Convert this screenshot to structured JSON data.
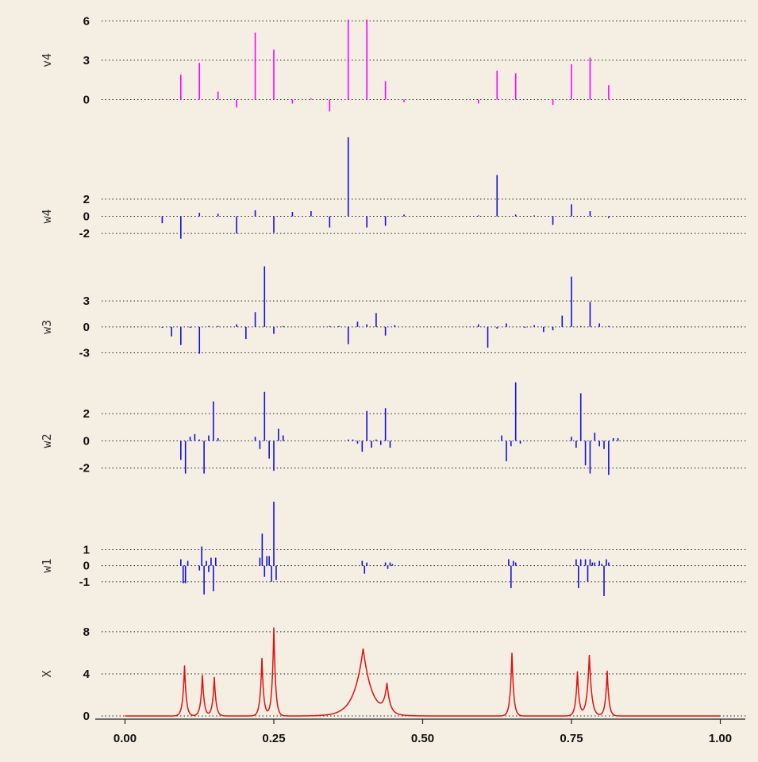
{
  "colors": {
    "background": "#f5efe3",
    "coef_pink": "#ff00ff",
    "coef_blue": "#1010e0",
    "signal_red": "#e01010"
  },
  "chart_data": {
    "type": "line",
    "panels": [
      {
        "label": "v4",
        "color": "#ff00ff",
        "kind": "stem",
        "ylim": [
          -1,
          6.5
        ],
        "yticks": [
          0,
          3,
          6
        ],
        "ytick_labels": [
          "0",
          "3",
          "6"
        ],
        "x": [
          0.0625,
          0.09375,
          0.125,
          0.15625,
          0.1875,
          0.21875,
          0.25,
          0.28125,
          0.3125,
          0.34375,
          0.375,
          0.40625,
          0.4375,
          0.46875,
          0.59375,
          0.625,
          0.65625,
          0.71875,
          0.75,
          0.78125,
          0.8125
        ],
        "y": [
          0.05,
          1.9,
          2.8,
          0.6,
          -0.6,
          5.1,
          3.8,
          -0.3,
          0.1,
          -0.9,
          6.1,
          6.1,
          1.4,
          -0.2,
          -0.3,
          2.2,
          2.0,
          -0.4,
          2.7,
          3.2,
          1.1
        ]
      },
      {
        "label": "w4",
        "color": "#1010e0",
        "kind": "stem",
        "ylim": [
          -3,
          9
        ],
        "yticks": [
          -2,
          0,
          2
        ],
        "ytick_labels": [
          "-2",
          "0",
          "2"
        ],
        "x": [
          0.0625,
          0.09375,
          0.125,
          0.15625,
          0.1875,
          0.21875,
          0.25,
          0.28125,
          0.3125,
          0.34375,
          0.375,
          0.40625,
          0.4375,
          0.46875,
          0.59375,
          0.625,
          0.65625,
          0.6875,
          0.71875,
          0.75,
          0.78125,
          0.8125
        ],
        "y": [
          -0.8,
          -2.6,
          0.4,
          0.3,
          -2.0,
          0.7,
          -1.9,
          0.5,
          0.6,
          -1.3,
          9.2,
          -1.3,
          -1.1,
          0.2,
          0.1,
          4.8,
          0.2,
          0.1,
          -1.0,
          1.4,
          0.6,
          -0.2
        ]
      },
      {
        "label": "w3",
        "color": "#1010e0",
        "kind": "stem",
        "ylim": [
          -3.5,
          7.5
        ],
        "yticks": [
          -3,
          0,
          3
        ],
        "ytick_labels": [
          "-3",
          "0",
          "3"
        ],
        "x": [
          0.0625,
          0.078125,
          0.09375,
          0.109375,
          0.125,
          0.140625,
          0.15625,
          0.171875,
          0.1875,
          0.203125,
          0.21875,
          0.234375,
          0.25,
          0.265625,
          0.34375,
          0.359375,
          0.375,
          0.390625,
          0.40625,
          0.421875,
          0.4375,
          0.453125,
          0.59375,
          0.609375,
          0.625,
          0.640625,
          0.65625,
          0.671875,
          0.6875,
          0.703125,
          0.71875,
          0.734375,
          0.75,
          0.765625,
          0.78125,
          0.796875,
          0.8125
        ],
        "y": [
          -0.1,
          -1.1,
          -2.1,
          -0.1,
          -3.1,
          0.1,
          0.1,
          0,
          0.3,
          -1.4,
          1.7,
          7.0,
          -0.8,
          0.1,
          0.1,
          0.1,
          -2.0,
          0.6,
          0.3,
          1.6,
          -1.0,
          0.2,
          0.3,
          -2.4,
          -0.2,
          0.4,
          0,
          -0.1,
          0.2,
          -0.6,
          -0.4,
          1.3,
          5.8,
          0.1,
          2.9,
          0.4,
          0.1
        ]
      },
      {
        "label": "w2",
        "color": "#1010e0",
        "kind": "stem",
        "ylim": [
          -2.6,
          4.4
        ],
        "yticks": [
          -2,
          0,
          2
        ],
        "ytick_labels": [
          "-2",
          "0",
          "2"
        ],
        "x": [
          0.09375,
          0.1015625,
          0.109375,
          0.1171875,
          0.125,
          0.1328125,
          0.140625,
          0.1484375,
          0.15625,
          0.21875,
          0.2265625,
          0.234375,
          0.2421875,
          0.25,
          0.2578125,
          0.265625,
          0.375,
          0.3828125,
          0.390625,
          0.3984375,
          0.40625,
          0.4140625,
          0.421875,
          0.4296875,
          0.4375,
          0.4453125,
          0.6328125,
          0.640625,
          0.6484375,
          0.65625,
          0.6640625,
          0.75,
          0.7578125,
          0.765625,
          0.7734375,
          0.78125,
          0.7890625,
          0.796875,
          0.8046875,
          0.8125,
          0.8203125,
          0.828125
        ],
        "y": [
          -1.4,
          -2.4,
          0.3,
          0.5,
          0.1,
          -2.4,
          0.4,
          2.9,
          0.2,
          0.3,
          -0.6,
          3.6,
          -1.3,
          -2.2,
          0.9,
          0.4,
          0.1,
          0.1,
          -0.2,
          -0.8,
          2.2,
          -0.5,
          0.1,
          -0.3,
          2.4,
          -0.5,
          0.4,
          -1.5,
          -0.4,
          4.3,
          -0.2,
          0.3,
          -0.5,
          3.5,
          -1.8,
          -2.4,
          0.6,
          -0.4,
          -0.6,
          -2.5,
          0.2,
          0.2
        ]
      },
      {
        "label": "w1",
        "color": "#1010e0",
        "kind": "stem",
        "ylim": [
          -2.1,
          4.1
        ],
        "yticks": [
          -1,
          0,
          1
        ],
        "ytick_labels": [
          "-1",
          "0",
          "1"
        ],
        "x": [
          0.09375,
          0.0976563,
          0.1015625,
          0.1054688,
          0.125,
          0.1289063,
          0.1328125,
          0.1367188,
          0.140625,
          0.1445313,
          0.1484375,
          0.1523438,
          0.2265625,
          0.2304688,
          0.234375,
          0.2382813,
          0.2421875,
          0.2460938,
          0.25,
          0.2539063,
          0.3984375,
          0.4023438,
          0.40625,
          0.4375,
          0.4414063,
          0.4453125,
          0.4492188,
          0.6445313,
          0.6484375,
          0.6523438,
          0.65625,
          0.7578125,
          0.7617188,
          0.765625,
          0.7734375,
          0.7773438,
          0.78125,
          0.7851563,
          0.7890625,
          0.796875,
          0.8007813,
          0.8046875,
          0.8085938,
          0.8125
        ],
        "y": [
          0.4,
          -1.1,
          -1.1,
          0.3,
          -0.3,
          1.2,
          -1.8,
          0.3,
          -0.4,
          0.5,
          -1.6,
          0.5,
          0.5,
          2.0,
          -0.7,
          0.6,
          0.6,
          -1.0,
          4.0,
          -0.9,
          0.3,
          -0.5,
          0.2,
          0.2,
          -0.2,
          0.2,
          0.1,
          0.4,
          -1.4,
          0.3,
          0.2,
          0.4,
          -1.4,
          0.4,
          0.4,
          -1.0,
          0.4,
          0.2,
          0.2,
          0.3,
          0.1,
          -1.9,
          0.4,
          0.2
        ]
      },
      {
        "label": "X",
        "color": "#e01010",
        "kind": "line",
        "ylim": [
          -0.3,
          9.2
        ],
        "yticks": [
          0,
          4,
          8
        ],
        "ytick_labels": [
          "0",
          "4",
          "8"
        ],
        "peaks": [
          {
            "x": 0.1,
            "y": 4.8,
            "w": 0.003
          },
          {
            "x": 0.13,
            "y": 3.9,
            "w": 0.003
          },
          {
            "x": 0.15,
            "y": 3.7,
            "w": 0.003
          },
          {
            "x": 0.23,
            "y": 5.5,
            "w": 0.003
          },
          {
            "x": 0.25,
            "y": 8.4,
            "w": 0.003
          },
          {
            "x": 0.4,
            "y": 6.4,
            "w": 0.015
          },
          {
            "x": 0.44,
            "y": 2.7,
            "w": 0.005
          },
          {
            "x": 0.65,
            "y": 6.0,
            "w": 0.003
          },
          {
            "x": 0.76,
            "y": 4.2,
            "w": 0.003
          },
          {
            "x": 0.78,
            "y": 5.8,
            "w": 0.004
          },
          {
            "x": 0.81,
            "y": 4.3,
            "w": 0.003
          }
        ]
      }
    ],
    "xlim": [
      -0.05,
      1.05
    ],
    "xticks": [
      0,
      0.25,
      0.5,
      0.75,
      1.0
    ],
    "xtick_labels": [
      "0.00",
      "0.25",
      "0.50",
      "0.75",
      "1.00"
    ],
    "grid": true
  }
}
